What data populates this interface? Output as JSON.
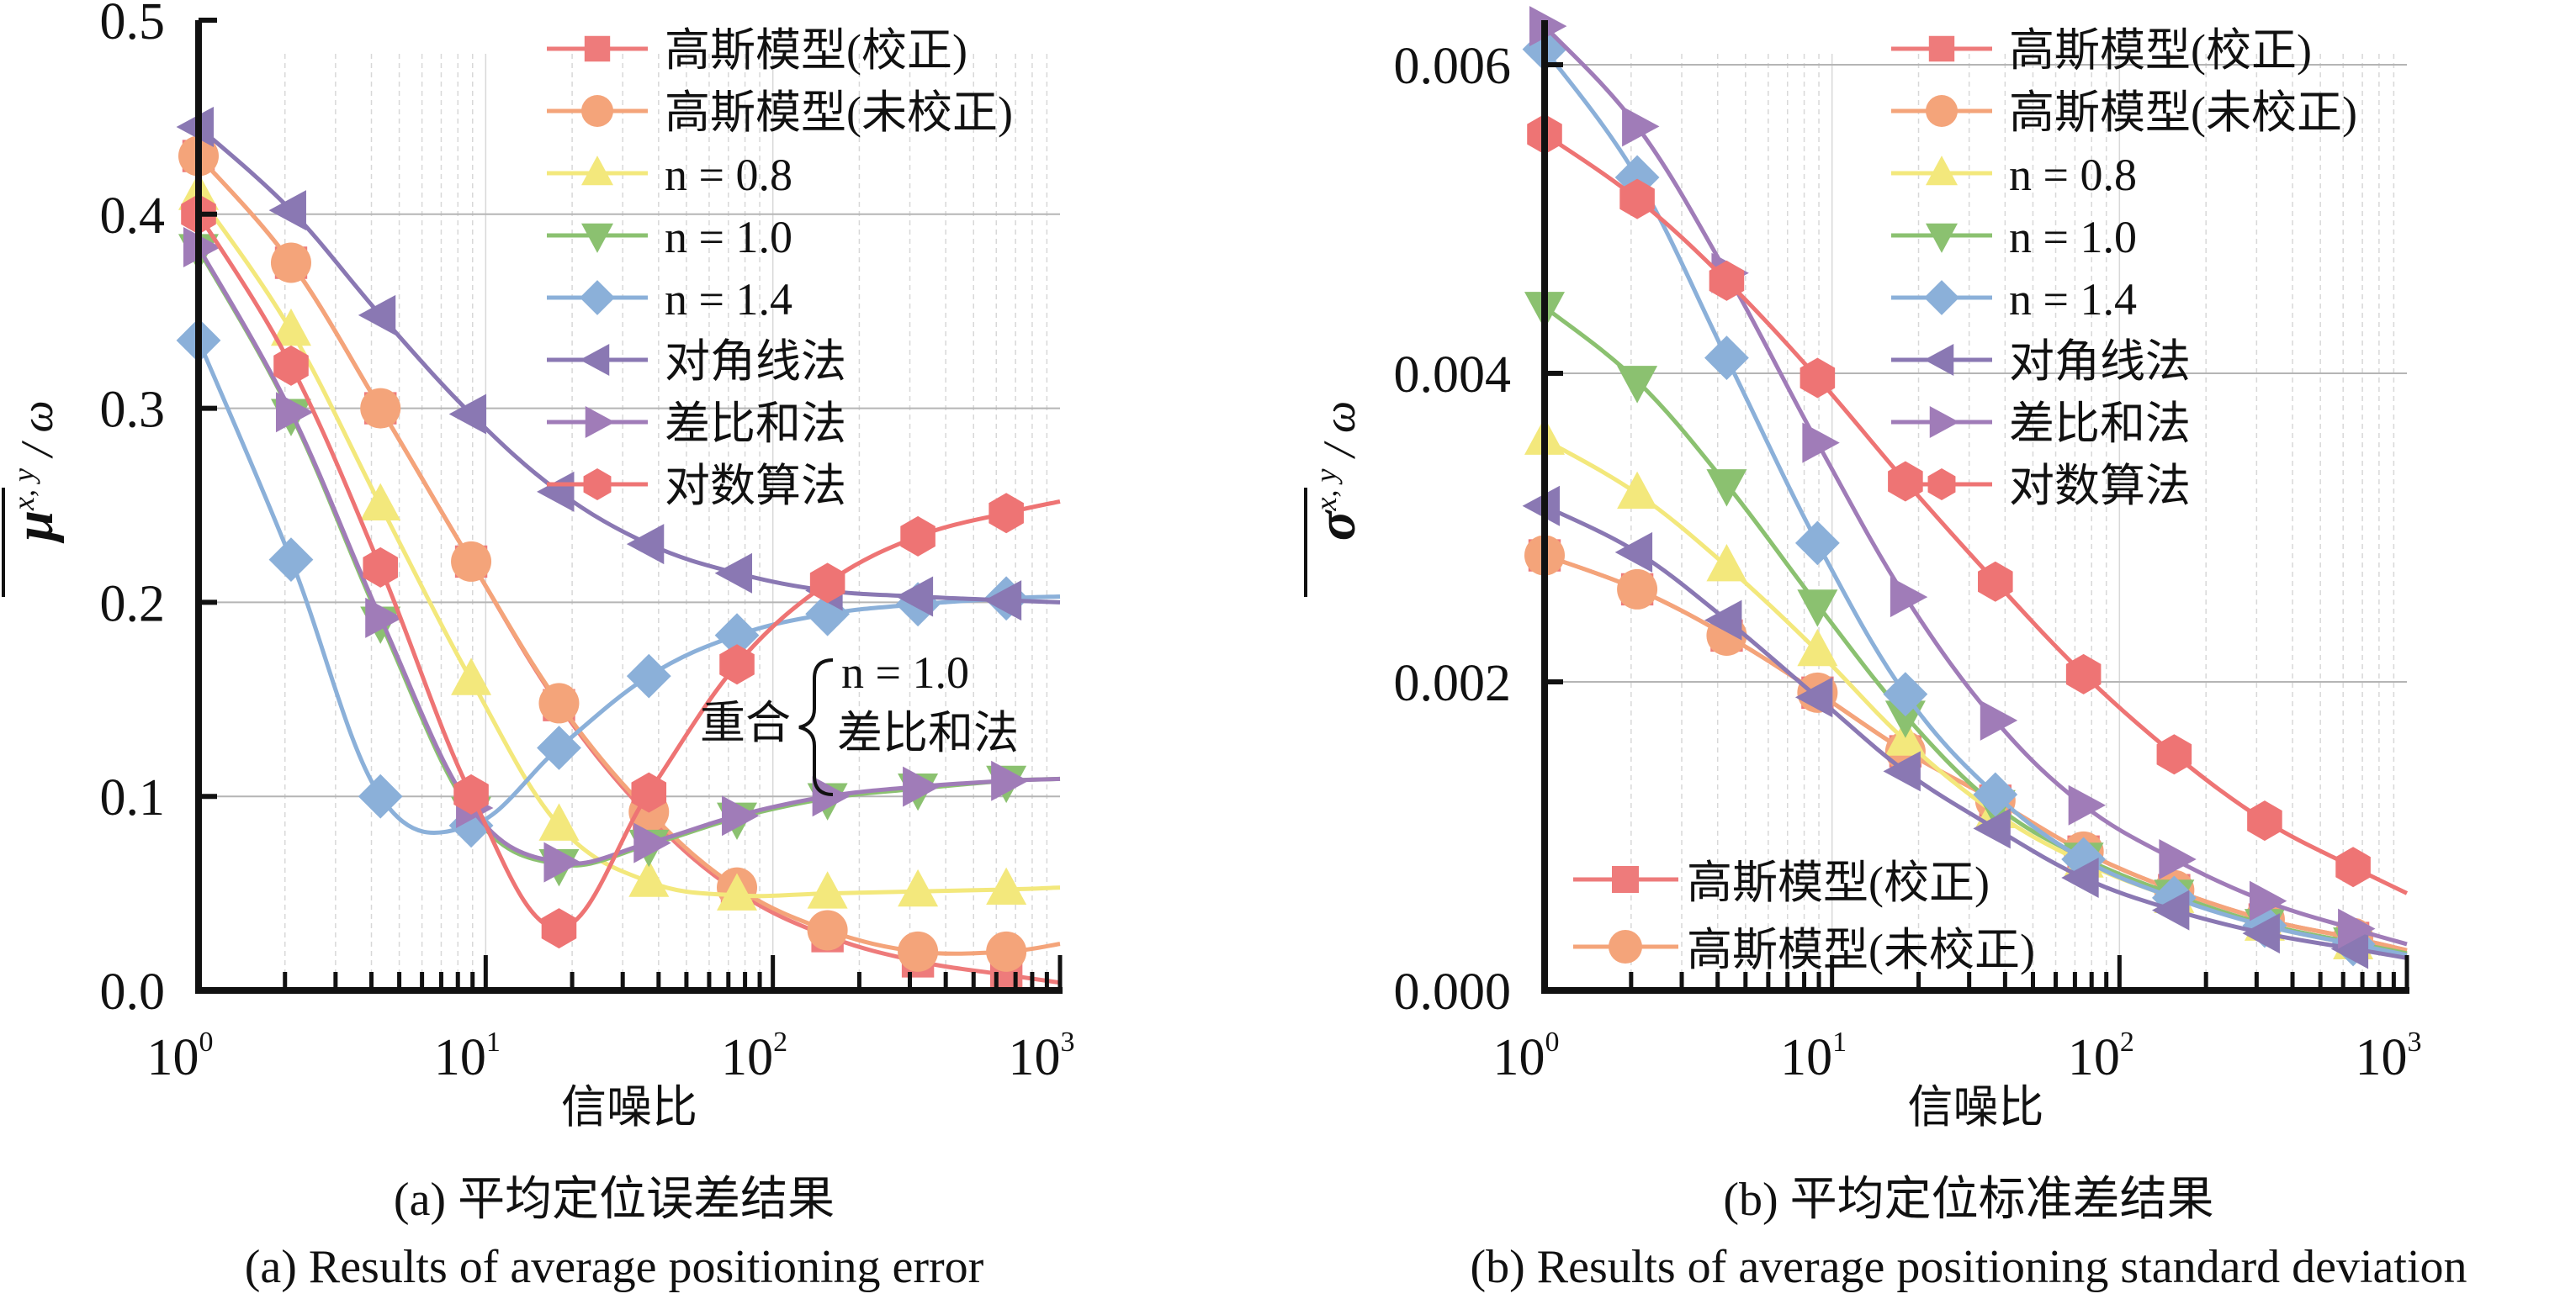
{
  "colors": {
    "gauss_corr": "#ee7b7b",
    "gauss_uncorr": "#f4a47a",
    "n08": "#f3e87c",
    "n10": "#8bc170",
    "n14": "#8bb0d9",
    "diagonal": "#8a78b3",
    "diffsum": "#a07cb8",
    "log": "#ee7474",
    "grid": "#b5b5b5",
    "minor_grid": "#d8d8d8",
    "axis": "#111111"
  },
  "chart_data": [
    {
      "id": "a",
      "type": "line",
      "title": "",
      "xscale": "log",
      "xlim": [
        1,
        1000
      ],
      "ylim": [
        0.0,
        0.5
      ],
      "yticks": [
        "0.0",
        "0.1",
        "0.2",
        "0.3",
        "0.4",
        "0.5"
      ],
      "ytick_values": [
        0,
        0.1,
        0.2,
        0.3,
        0.4,
        0.5
      ],
      "xticks": [
        {
          "base": "10",
          "exp": "0"
        },
        {
          "base": "10",
          "exp": "1"
        },
        {
          "base": "10",
          "exp": "2"
        },
        {
          "base": "10",
          "exp": "3"
        }
      ],
      "xlabel": "信噪比",
      "ylabel": {
        "symbol": "μ",
        "subscript": "x, y",
        "suffix": "/ ω"
      },
      "grid": true,
      "legend_position": "top-right",
      "legend": [
        "高斯模型(校正)",
        "高斯模型(未校正)",
        "n = 0.8",
        "n = 1.0",
        "n = 1.4",
        "对角线法",
        "差比和法",
        "对数算法"
      ],
      "annotation": {
        "prefix": "重合",
        "lines": [
          "n = 1.0",
          "差比和法"
        ]
      },
      "caption_cn": "(a) 平均定位误差结果",
      "caption_en": "(a) Results of average positioning error",
      "x": [
        1,
        2.1,
        4.3,
        8.9,
        18,
        37,
        75,
        155,
        320,
        650
      ],
      "series": [
        {
          "name": "高斯模型(校正)",
          "key": "gauss_corr",
          "marker": "square",
          "values": [
            0.43,
            0.375,
            0.3,
            0.221,
            0.147,
            0.09,
            0.051,
            0.028,
            0.015,
            0.008
          ],
          "end": 0.004
        },
        {
          "name": "高斯模型(未校正)",
          "key": "gauss_uncorr",
          "marker": "circle",
          "values": [
            0.43,
            0.375,
            0.3,
            0.221,
            0.148,
            0.092,
            0.053,
            0.031,
            0.02,
            0.02
          ],
          "end": 0.024
        },
        {
          "name": "n = 0.8",
          "key": "n08",
          "marker": "triangle-up",
          "values": [
            0.41,
            0.34,
            0.25,
            0.16,
            0.085,
            0.056,
            0.049,
            0.05,
            0.051,
            0.052
          ],
          "end": 0.053
        },
        {
          "name": "n = 1.0",
          "key": "n10",
          "marker": "triangle-down",
          "values": [
            0.382,
            0.297,
            0.19,
            0.092,
            0.065,
            0.075,
            0.089,
            0.099,
            0.104,
            0.108
          ],
          "end": 0.109
        },
        {
          "name": "n = 1.4",
          "key": "n14",
          "marker": "diamond",
          "values": [
            0.335,
            0.222,
            0.1,
            0.085,
            0.125,
            0.162,
            0.183,
            0.194,
            0.199,
            0.202
          ],
          "end": 0.203
        },
        {
          "name": "对角线法",
          "key": "diagonal",
          "marker": "triangle-left",
          "values": [
            0.445,
            0.402,
            0.348,
            0.297,
            0.257,
            0.23,
            0.215,
            0.206,
            0.203,
            0.201
          ],
          "end": 0.2
        },
        {
          "name": "差比和法",
          "key": "diffsum",
          "marker": "triangle-right",
          "values": [
            0.383,
            0.298,
            0.192,
            0.094,
            0.066,
            0.076,
            0.09,
            0.1,
            0.105,
            0.108
          ],
          "end": 0.109
        },
        {
          "name": "对数算法",
          "key": "log",
          "marker": "hexagon",
          "values": [
            0.4,
            0.322,
            0.218,
            0.101,
            0.032,
            0.102,
            0.168,
            0.21,
            0.234,
            0.246
          ],
          "end": 0.252
        }
      ]
    },
    {
      "id": "b",
      "type": "line",
      "title": "",
      "xscale": "log",
      "xlim": [
        1,
        1000
      ],
      "ylim": [
        0.0,
        0.0062
      ],
      "yticks": [
        "0.000",
        "0.002",
        "0.004",
        "0.006"
      ],
      "ytick_values": [
        0,
        0.002,
        0.004,
        0.006
      ],
      "xticks": [
        {
          "base": "10",
          "exp": "0"
        },
        {
          "base": "10",
          "exp": "1"
        },
        {
          "base": "10",
          "exp": "2"
        },
        {
          "base": "10",
          "exp": "3"
        }
      ],
      "xlabel": "信噪比",
      "ylabel": {
        "symbol": "σ",
        "subscript": "x, y",
        "suffix": "/ ω"
      },
      "grid": true,
      "legend_position": "top-right",
      "legend": [
        "高斯模型(校正)",
        "高斯模型(未校正)",
        "n = 0.8",
        "n = 1.0",
        "n = 1.4",
        "对角线法",
        "差比和法",
        "对数算法"
      ],
      "legend_bottom": [
        "高斯模型(校正)",
        "高斯模型(未校正)"
      ],
      "caption_cn": "(b) 平均定位标准差结果",
      "caption_en": "(b) Results of average positioning standard deviation",
      "x": [
        1,
        2.1,
        4.3,
        8.9,
        18,
        37,
        75,
        155,
        320,
        650
      ],
      "series": [
        {
          "name": "高斯模型(校正)",
          "key": "gauss_corr",
          "marker": "square",
          "values": [
            0.00282,
            0.0026,
            0.0023,
            0.00193,
            0.00155,
            0.00123,
            0.0009,
            0.00065,
            0.00046,
            0.00034
          ],
          "end": 0.00026
        },
        {
          "name": "高斯模型(未校正)",
          "key": "gauss_uncorr",
          "marker": "circle",
          "values": [
            0.00282,
            0.0026,
            0.0023,
            0.00193,
            0.00155,
            0.00123,
            0.0009,
            0.00065,
            0.00046,
            0.00034
          ],
          "end": 0.00026
        },
        {
          "name": "n = 0.8",
          "key": "n08",
          "marker": "triangle-up",
          "values": [
            0.00357,
            0.00322,
            0.00275,
            0.0022,
            0.00162,
            0.00115,
            0.00083,
            0.0006,
            0.00042,
            0.0003
          ],
          "end": 0.00023
        },
        {
          "name": "n = 1.0",
          "key": "n10",
          "marker": "triangle-down",
          "values": [
            0.00443,
            0.00395,
            0.00328,
            0.0025,
            0.00178,
            0.0012,
            0.00086,
            0.00062,
            0.00043,
            0.00031
          ],
          "end": 0.00024
        },
        {
          "name": "n = 1.4",
          "key": "n14",
          "marker": "diamond",
          "values": [
            0.0061,
            0.00527,
            0.0041,
            0.0029,
            0.00192,
            0.00127,
            0.00085,
            0.0006,
            0.00042,
            0.0003
          ],
          "end": 0.00023
        },
        {
          "name": "对角线法",
          "key": "diagonal",
          "marker": "triangle-left",
          "values": [
            0.00314,
            0.00284,
            0.0024,
            0.0019,
            0.00142,
            0.00105,
            0.00073,
            0.00052,
            0.00037,
            0.00027
          ],
          "end": 0.00021
        },
        {
          "name": "差比和法",
          "key": "diffsum",
          "marker": "triangle-right",
          "values": [
            0.00625,
            0.0056,
            0.00465,
            0.00355,
            0.00255,
            0.00175,
            0.0012,
            0.00085,
            0.00058,
            0.0004
          ],
          "end": 0.0003
        },
        {
          "name": "对数算法",
          "key": "log",
          "marker": "hexagon",
          "values": [
            0.00555,
            0.00513,
            0.0046,
            0.00397,
            0.0033,
            0.00265,
            0.00205,
            0.00153,
            0.0011,
            0.0008
          ],
          "end": 0.00063
        }
      ]
    }
  ]
}
